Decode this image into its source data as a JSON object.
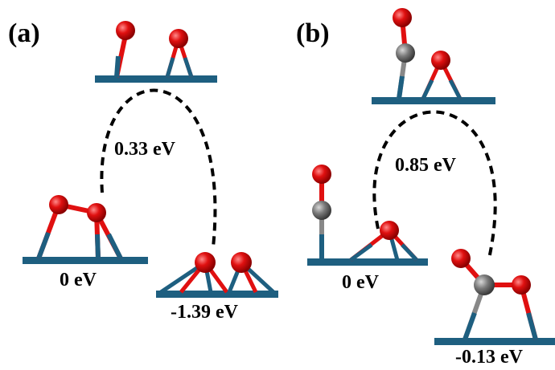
{
  "colors": {
    "surface": "#1e5f80",
    "bond_blue": "#1e5f80",
    "oxygen": "#e01010",
    "carbon": "#707070",
    "path": "#000000"
  },
  "panels": [
    {
      "label": "(a)",
      "states": {
        "initial": "0 eV",
        "transition": "0.33 eV",
        "final": "-1.39 eV"
      }
    },
    {
      "label": "(b)",
      "states": {
        "initial": "0 eV",
        "transition": "0.85 eV",
        "final": "-0.13 eV"
      }
    }
  ]
}
